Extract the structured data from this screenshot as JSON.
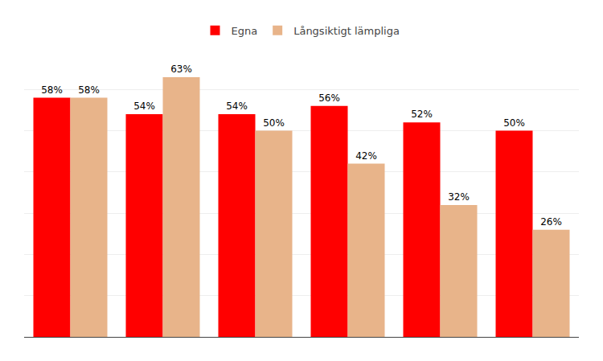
{
  "chart_data": {
    "type": "bar",
    "categories": [
      null,
      null,
      null,
      null,
      null,
      null
    ],
    "series": [
      {
        "name": "Egna",
        "color": "#FF0000",
        "values": [
          58,
          54,
          54,
          56,
          52,
          50
        ],
        "value_labels": [
          "58%",
          "54%",
          "54%",
          "56%",
          "52%",
          "50%"
        ]
      },
      {
        "name": "Långsiktigt lämpliga",
        "color": "#E8B48A",
        "values": [
          58,
          63,
          50,
          42,
          32,
          26
        ],
        "value_labels": [
          "58%",
          "63%",
          "50%",
          "42%",
          "32%",
          "26%"
        ]
      }
    ],
    "ylim": [
      0,
      70
    ],
    "yticks": [
      0,
      10,
      20,
      30,
      40,
      50,
      60,
      70
    ],
    "grid": true,
    "legend": "top",
    "data_labels": true,
    "tick_labels": false
  }
}
